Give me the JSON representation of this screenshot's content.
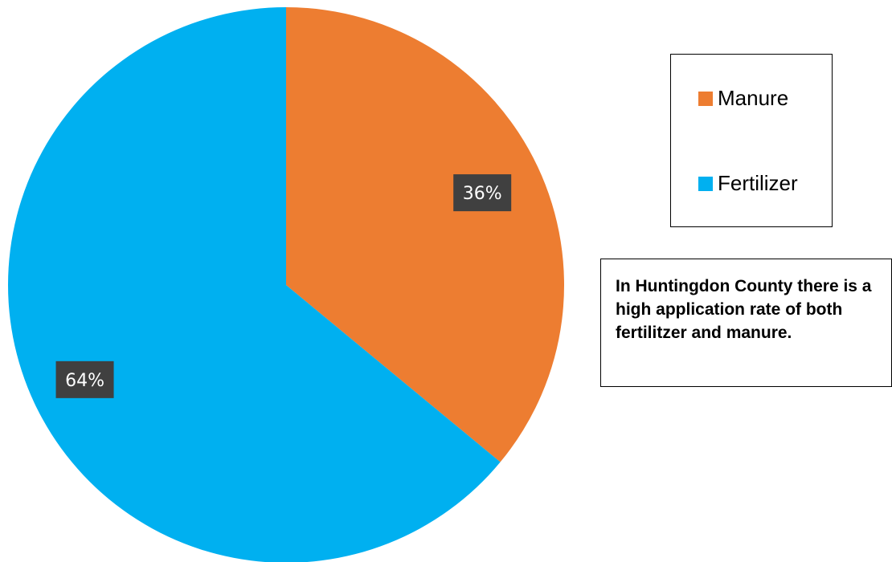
{
  "chart_data": {
    "type": "pie",
    "title": "",
    "categories": [
      "Manure",
      "Fertilizer"
    ],
    "values": [
      36,
      64
    ],
    "data_labels": [
      "36%",
      "64%"
    ],
    "colors": [
      "#ED7D31",
      "#00B0F0"
    ],
    "start_angle": "12 o'clock",
    "direction": "clockwise",
    "legend_position": "right"
  },
  "legend": {
    "items": [
      {
        "label": "Manure",
        "color": "#ED7D31"
      },
      {
        "label": "Fertilizer",
        "color": "#00B0F0"
      }
    ]
  },
  "note": {
    "text": "In Huntingdon County there is a high application rate of both fertilitzer and manure."
  }
}
